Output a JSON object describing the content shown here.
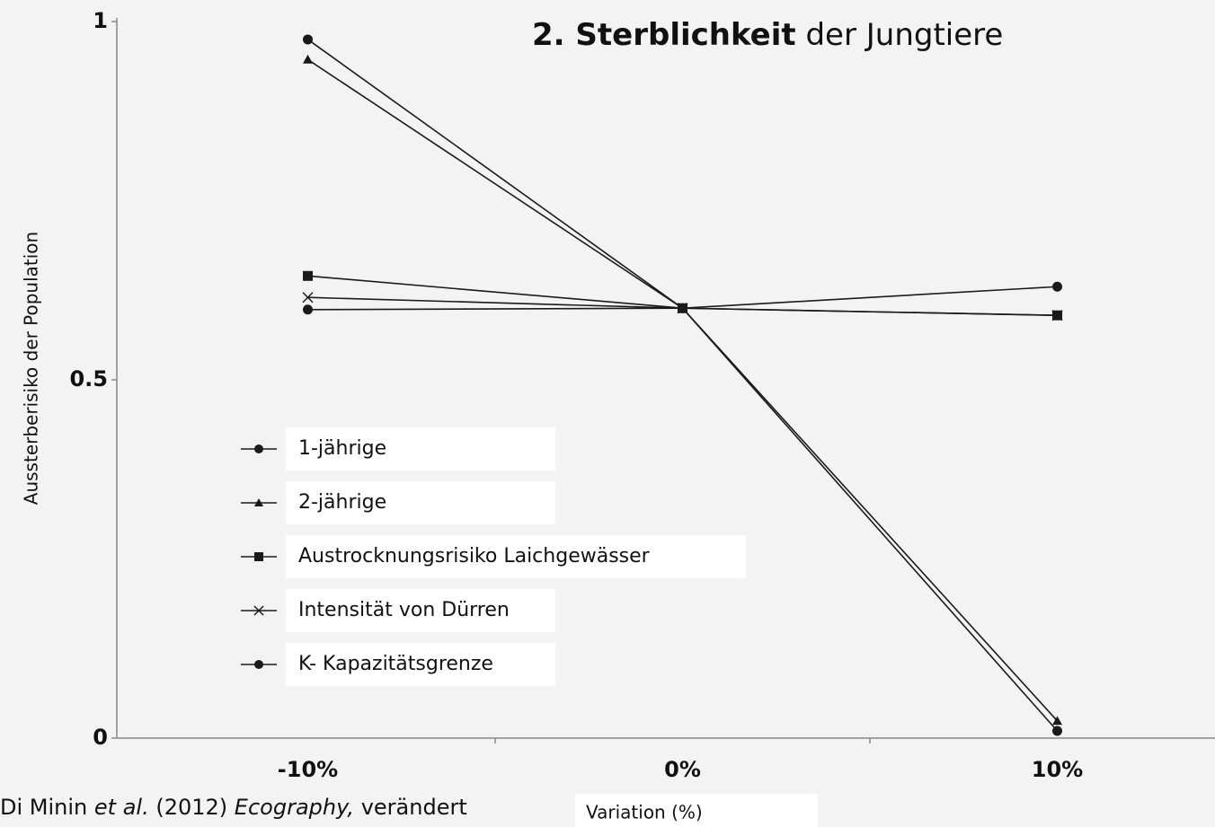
{
  "chart_data": {
    "type": "line",
    "title_parts": [
      "2. Sterblichkeit",
      "der Jungtiere"
    ],
    "source_parts": [
      "Di Minin",
      "et al.",
      "(2012)",
      "Ecography,",
      "verändert"
    ],
    "x_label": "Variation (%)",
    "y_label": "Aussterberisiko der Population",
    "categories": [
      "-10%",
      "0%",
      "10%"
    ],
    "ylim": [
      0,
      1
    ],
    "yticks": [
      0,
      0.5,
      1
    ],
    "series": [
      {
        "name": "1-jährige",
        "color": "#1a1a1a",
        "marker": "circle",
        "values": [
          0.975,
          0.6,
          0.01
        ]
      },
      {
        "name": "2-jährige",
        "color": "#1a1a1a",
        "marker": "triangle",
        "values": [
          0.947,
          0.6,
          0.024
        ]
      },
      {
        "name": "Austrocknungsrisiko Laichgewässer",
        "color": "#1a1a1a",
        "marker": "square",
        "values": [
          0.645,
          0.6,
          0.59
        ]
      },
      {
        "name": "Intensität von Dürren",
        "color": "#1a1a1a",
        "marker": "x",
        "values": [
          0.615,
          0.6,
          0.59
        ]
      },
      {
        "name": "K- Kapazitätsgrenze",
        "color": "#1a1a1a",
        "marker": "circle",
        "values": [
          0.598,
          0.6,
          0.63
        ]
      }
    ]
  }
}
